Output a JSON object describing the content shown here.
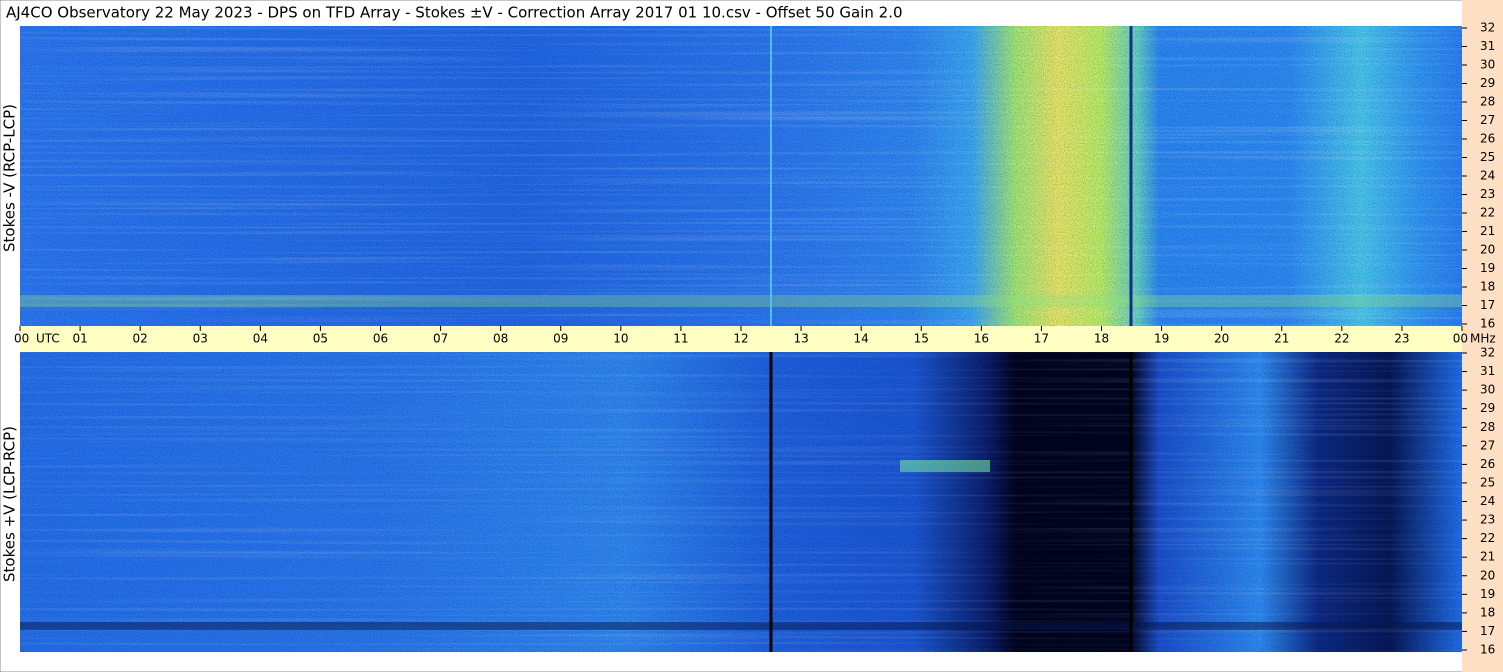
{
  "chart_data": [
    {
      "type": "heatmap",
      "title": "AJ4CO Observatory  22 May 2023  -  DPS on TFD Array  -  Stokes ±V  -  Correction Array 2017 01 10.csv  -  Offset 50  Gain 2.0",
      "ylabel": "Stokes -V (RCP-LCP)",
      "xlabel": "UTC",
      "yunit": "MHz",
      "xlim": [
        0,
        24
      ],
      "xticks": [
        {
          "value": 0,
          "label": "00"
        },
        {
          "value": 1,
          "label": "01"
        },
        {
          "value": 2,
          "label": "02"
        },
        {
          "value": 3,
          "label": "03"
        },
        {
          "value": 4,
          "label": "04"
        },
        {
          "value": 5,
          "label": "05"
        },
        {
          "value": 6,
          "label": "06"
        },
        {
          "value": 7,
          "label": "07"
        },
        {
          "value": 8,
          "label": "08"
        },
        {
          "value": 9,
          "label": "09"
        },
        10,
        11,
        12,
        13,
        14,
        15,
        16,
        17,
        18,
        19,
        20,
        21,
        22,
        23,
        {
          "value": 24,
          "label": "00"
        }
      ],
      "ylim": [
        16,
        32
      ],
      "yticks": [
        16,
        17,
        18,
        19,
        20,
        21,
        22,
        23,
        24,
        25,
        26,
        27,
        28,
        29,
        30,
        31,
        32
      ]
    },
    {
      "type": "heatmap",
      "ylabel": "Stokes +V (LCP-RCP)",
      "ylim": [
        16,
        32
      ],
      "yticks": [
        16,
        17,
        18,
        19,
        20,
        21,
        22,
        23,
        24,
        25,
        26,
        27,
        28,
        29,
        30,
        31,
        32
      ]
    }
  ]
}
